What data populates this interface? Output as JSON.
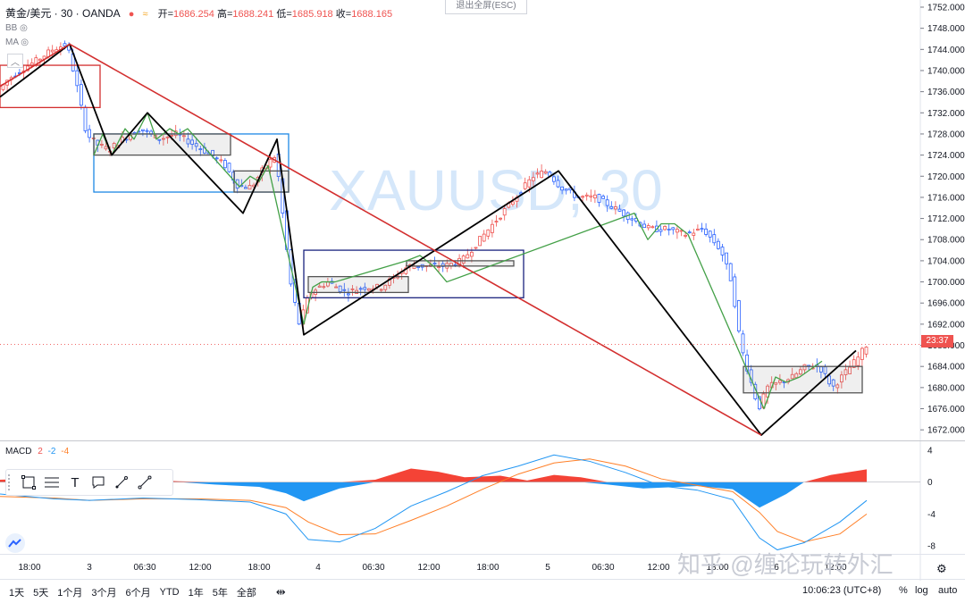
{
  "header": {
    "symbol": "黄金/美元 · 30 · OANDA",
    "open_label": "开=",
    "open": "1686.254",
    "high_label": "高=",
    "high": "1688.241",
    "low_label": "低=",
    "low": "1685.918",
    "close_label": "收=",
    "close": "1688.165",
    "indicators": [
      "BB",
      "MA"
    ]
  },
  "exit_fullscreen": "退出全屏(ESC)",
  "watermark_symbol": "XAUUSD, 30",
  "watermark_site": "知乎 @缠论玩转外汇",
  "current_price_tag": "23:37",
  "chart_data": {
    "type": "candlestick",
    "instrument": "XAUUSD",
    "timeframe": "30",
    "y_ticks": [
      1752,
      1748,
      1744,
      1740,
      1736,
      1732,
      1728,
      1724,
      1720,
      1716,
      1712,
      1708,
      1704,
      1700,
      1696,
      1692,
      1688,
      1684,
      1680,
      1676,
      1672
    ],
    "y_range": [
      1670,
      1752
    ],
    "x_ticks": [
      "18:00",
      "3",
      "06:30",
      "12:00",
      "18:00",
      "4",
      "06:30",
      "12:00",
      "18:00",
      "5",
      "06:30",
      "12:00",
      "18:00",
      "6",
      "12:00"
    ],
    "price_path": [
      [
        0,
        1736
      ],
      [
        10,
        1738
      ],
      [
        25,
        1740
      ],
      [
        45,
        1742
      ],
      [
        62,
        1744
      ],
      [
        78,
        1745
      ],
      [
        88,
        1738
      ],
      [
        100,
        1728
      ],
      [
        112,
        1726
      ],
      [
        125,
        1725
      ],
      [
        140,
        1727
      ],
      [
        160,
        1729
      ],
      [
        180,
        1727
      ],
      [
        200,
        1728
      ],
      [
        220,
        1726
      ],
      [
        240,
        1724
      ],
      [
        255,
        1722
      ],
      [
        270,
        1718
      ],
      [
        285,
        1718
      ],
      [
        300,
        1722
      ],
      [
        312,
        1724
      ],
      [
        320,
        1712
      ],
      [
        328,
        1700
      ],
      [
        338,
        1692
      ],
      [
        350,
        1698
      ],
      [
        370,
        1700
      ],
      [
        390,
        1698
      ],
      [
        410,
        1699
      ],
      [
        430,
        1699
      ],
      [
        445,
        1701
      ],
      [
        460,
        1703
      ],
      [
        480,
        1703
      ],
      [
        500,
        1703
      ],
      [
        520,
        1704
      ],
      [
        540,
        1708
      ],
      [
        560,
        1712
      ],
      [
        580,
        1716
      ],
      [
        600,
        1720
      ],
      [
        615,
        1721
      ],
      [
        630,
        1718
      ],
      [
        650,
        1716
      ],
      [
        670,
        1716
      ],
      [
        690,
        1714
      ],
      [
        710,
        1712
      ],
      [
        730,
        1710
      ],
      [
        750,
        1710
      ],
      [
        770,
        1709
      ],
      [
        790,
        1710
      ],
      [
        810,
        1706
      ],
      [
        822,
        1700
      ],
      [
        832,
        1688
      ],
      [
        842,
        1682
      ],
      [
        852,
        1676
      ],
      [
        862,
        1680
      ],
      [
        875,
        1681
      ],
      [
        890,
        1682
      ],
      [
        905,
        1684
      ],
      [
        920,
        1684
      ],
      [
        935,
        1680
      ],
      [
        950,
        1683
      ],
      [
        965,
        1686
      ],
      [
        972,
        1688
      ]
    ],
    "red_trend_points": [
      [
        0,
        1737
      ],
      [
        78,
        1745
      ],
      [
        852,
        1671
      ]
    ],
    "black_stroke_points": [
      [
        0,
        1735
      ],
      [
        78,
        1745
      ],
      [
        125,
        1724
      ],
      [
        165,
        1732
      ],
      [
        272,
        1713
      ],
      [
        310,
        1727
      ],
      [
        340,
        1690
      ],
      [
        625,
        1721
      ],
      [
        852,
        1671
      ],
      [
        958,
        1687
      ]
    ],
    "green_stroke_points": [
      [
        105,
        1724
      ],
      [
        115,
        1728
      ],
      [
        125,
        1724
      ],
      [
        140,
        1729
      ],
      [
        150,
        1727
      ],
      [
        165,
        1732
      ],
      [
        175,
        1727
      ],
      [
        190,
        1729
      ],
      [
        200,
        1728
      ],
      [
        210,
        1729
      ],
      [
        268,
        1718
      ],
      [
        280,
        1720
      ],
      [
        290,
        1719
      ],
      [
        300,
        1722
      ],
      [
        340,
        1692
      ],
      [
        350,
        1699
      ],
      [
        360,
        1700
      ],
      [
        375,
        1700
      ],
      [
        455,
        1704
      ],
      [
        470,
        1705
      ],
      [
        485,
        1703
      ],
      [
        500,
        1700
      ],
      [
        710,
        1713
      ],
      [
        725,
        1708
      ],
      [
        740,
        1711
      ],
      [
        755,
        1711
      ],
      [
        770,
        1709
      ],
      [
        855,
        1676
      ],
      [
        868,
        1682
      ],
      [
        880,
        1681
      ],
      [
        895,
        1682
      ],
      [
        920,
        1685
      ]
    ],
    "boxes": [
      {
        "color": "#d32f2f",
        "y_top": 1741,
        "y_bottom": 1733,
        "x0": 0,
        "x1": 112
      },
      {
        "color": "#1e88e5",
        "y_top": 1728,
        "y_bottom": 1717,
        "x0": 105,
        "x1": 323
      },
      {
        "color": "#555555",
        "y_top": 1728,
        "y_bottom": 1724,
        "x0": 105,
        "x1": 258
      },
      {
        "color": "#555555",
        "y_top": 1721,
        "y_bottom": 1717,
        "x0": 262,
        "x1": 323
      },
      {
        "color": "#1a237e",
        "y_top": 1706,
        "y_bottom": 1697,
        "x0": 340,
        "x1": 586
      },
      {
        "color": "#555555",
        "y_top": 1701,
        "y_bottom": 1698,
        "x0": 345,
        "x1": 457
      },
      {
        "color": "#555555",
        "y_top": 1704,
        "y_bottom": 1703,
        "x0": 455,
        "x1": 575
      },
      {
        "color": "#555555",
        "y_top": 1684,
        "y_bottom": 1679,
        "x0": 832,
        "x1": 965
      }
    ],
    "macd": {
      "label": "MACD",
      "params": [
        "2",
        "-2",
        "-4"
      ],
      "y_ticks": [
        4,
        0,
        -4,
        -8
      ],
      "y_range": [
        -9,
        5
      ],
      "histogram": [
        [
          0,
          0.3
        ],
        [
          60,
          0.5
        ],
        [
          100,
          0.8
        ],
        [
          160,
          0.3
        ],
        [
          200,
          0.1
        ],
        [
          240,
          -0.3
        ],
        [
          290,
          -0.6
        ],
        [
          320,
          -1.4
        ],
        [
          340,
          -2.4
        ],
        [
          360,
          -1.6
        ],
        [
          380,
          -0.8
        ],
        [
          420,
          0.3
        ],
        [
          460,
          1.7
        ],
        [
          490,
          1.3
        ],
        [
          520,
          0.6
        ],
        [
          560,
          0.8
        ],
        [
          590,
          0.2
        ],
        [
          620,
          0.9
        ],
        [
          650,
          0.6
        ],
        [
          680,
          -0.3
        ],
        [
          720,
          -0.8
        ],
        [
          780,
          -0.5
        ],
        [
          820,
          -0.9
        ],
        [
          850,
          -3.2
        ],
        [
          880,
          -1.5
        ],
        [
          900,
          0.0
        ],
        [
          930,
          0.9
        ],
        [
          970,
          1.6
        ]
      ],
      "macd_line": [
        [
          0,
          -1.5
        ],
        [
          60,
          -2.1
        ],
        [
          100,
          -2.3
        ],
        [
          160,
          -2.0
        ],
        [
          220,
          -2.2
        ],
        [
          280,
          -2.5
        ],
        [
          320,
          -4.0
        ],
        [
          345,
          -7.2
        ],
        [
          380,
          -7.5
        ],
        [
          420,
          -5.8
        ],
        [
          460,
          -3.0
        ],
        [
          500,
          -1.2
        ],
        [
          540,
          0.8
        ],
        [
          580,
          2.0
        ],
        [
          620,
          3.4
        ],
        [
          660,
          2.6
        ],
        [
          700,
          1.2
        ],
        [
          740,
          -0.5
        ],
        [
          780,
          -1.0
        ],
        [
          820,
          -2.2
        ],
        [
          850,
          -7.0
        ],
        [
          870,
          -8.5
        ],
        [
          900,
          -7.6
        ],
        [
          940,
          -5.0
        ],
        [
          970,
          -2.3
        ]
      ],
      "signal_line": [
        [
          0,
          -1.8
        ],
        [
          60,
          -2.0
        ],
        [
          100,
          -2.3
        ],
        [
          160,
          -2.1
        ],
        [
          220,
          -2.1
        ],
        [
          280,
          -2.3
        ],
        [
          320,
          -3.2
        ],
        [
          345,
          -5.0
        ],
        [
          380,
          -6.6
        ],
        [
          420,
          -6.5
        ],
        [
          460,
          -4.8
        ],
        [
          500,
          -3.0
        ],
        [
          540,
          -0.9
        ],
        [
          580,
          1.0
        ],
        [
          620,
          2.4
        ],
        [
          660,
          2.9
        ],
        [
          700,
          2.0
        ],
        [
          740,
          0.4
        ],
        [
          780,
          -0.4
        ],
        [
          820,
          -1.2
        ],
        [
          850,
          -3.8
        ],
        [
          870,
          -6.2
        ],
        [
          900,
          -7.5
        ],
        [
          940,
          -6.5
        ],
        [
          970,
          -4.0
        ]
      ]
    }
  },
  "toolbar": {
    "icons": [
      "select-box-icon",
      "hlines-icon",
      "text-icon",
      "comment-icon",
      "pencil-icon",
      "line-icon"
    ],
    "text_glyph": "T"
  },
  "bottom": {
    "periods": [
      "1天",
      "5天",
      "1个月",
      "3个月",
      "6个月",
      "YTD",
      "1年",
      "5年",
      "全部"
    ],
    "time": "10:06:23 (UTC+8)",
    "percent": "%",
    "log": "log",
    "auto": "auto"
  },
  "colors": {
    "up": "#ef5350",
    "down": "#2962ff",
    "trend": "#d32f2f",
    "stroke": "#000000",
    "green": "#43a047",
    "hist_pos": "#f44336",
    "hist_neg": "#2196f3",
    "macd": "#2196f3",
    "signal": "#ff7f27"
  }
}
